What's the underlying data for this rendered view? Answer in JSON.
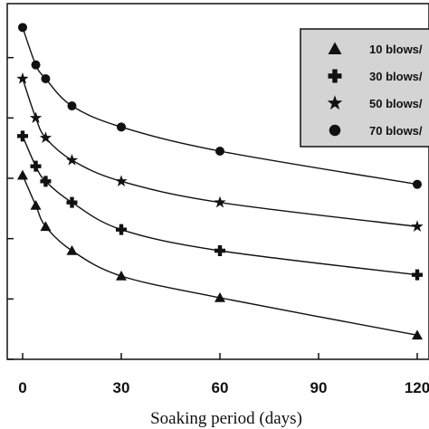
{
  "chart_data": {
    "type": "line",
    "xlabel": "Soaking period (days)",
    "ylabel": "",
    "title": "",
    "x_ticks": [
      0,
      30,
      60,
      90,
      120
    ],
    "xlim": [
      0,
      120
    ],
    "ylim": [
      0,
      6
    ],
    "legend_position": "top-right",
    "grid": false,
    "series": [
      {
        "name": "10 blows/",
        "marker": "triangle",
        "x": [
          0,
          4,
          7,
          15,
          30,
          60,
          120
        ],
        "y": [
          3.05,
          2.55,
          2.2,
          1.8,
          1.38,
          1.02,
          0.4
        ]
      },
      {
        "name": "30 blows/",
        "marker": "plus",
        "x": [
          0,
          4,
          7,
          15,
          30,
          60,
          120
        ],
        "y": [
          3.7,
          3.2,
          2.95,
          2.6,
          2.15,
          1.8,
          1.4
        ]
      },
      {
        "name": "50 blows/",
        "marker": "star",
        "x": [
          0,
          4,
          7,
          15,
          30,
          60,
          120
        ],
        "y": [
          4.65,
          4.0,
          3.67,
          3.3,
          2.95,
          2.6,
          2.2
        ]
      },
      {
        "name": "70 blows/",
        "marker": "circle",
        "x": [
          0,
          4,
          7,
          15,
          30,
          60,
          120
        ],
        "y": [
          5.5,
          4.88,
          4.65,
          4.2,
          3.85,
          3.45,
          2.9
        ]
      }
    ]
  }
}
